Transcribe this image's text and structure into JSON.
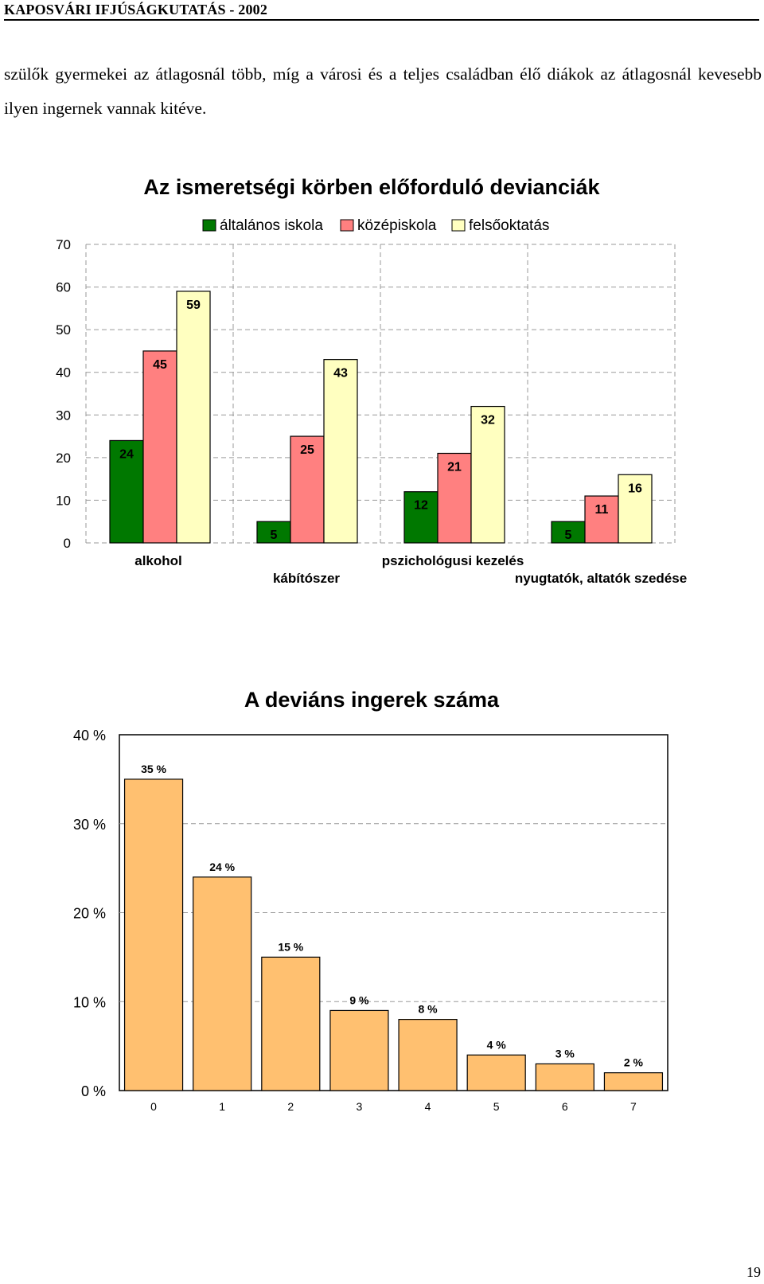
{
  "header": {
    "running_title": "KAPOSVÁRI IFJÚSÁGKUTATÁS - 2002"
  },
  "body": {
    "paragraph": "szülők gyermekei az átlagosnál több, míg a városi és a teljes családban élő diákok az átlagosnál kevesebb ilyen ingernek vannak kitéve."
  },
  "chart_data": [
    {
      "type": "bar",
      "title": "Az ismeretségi körben előforduló devianciák",
      "categories": [
        "alkohol",
        "kábítószer",
        "pszichológusi kezelés",
        "nyugtatók, altatók szedése"
      ],
      "series": [
        {
          "name": "általános iskola",
          "values": [
            24,
            5,
            12,
            5
          ],
          "color": "#007800"
        },
        {
          "name": "középiskola",
          "values": [
            45,
            25,
            21,
            11
          ],
          "color": "#ff8080"
        },
        {
          "name": "felsőoktatás",
          "values": [
            59,
            43,
            32,
            16
          ],
          "color": "#ffffc0"
        }
      ],
      "ylim": [
        0,
        70
      ],
      "yticks": [
        "0",
        "10",
        "20",
        "30",
        "40",
        "50",
        "60",
        "70"
      ],
      "grid": "dashed",
      "legend": "top"
    },
    {
      "type": "bar",
      "title": "A deviáns ingerek száma",
      "categories": [
        "0",
        "1",
        "2",
        "3",
        "4",
        "5",
        "6",
        "7"
      ],
      "values": [
        35,
        24,
        15,
        9,
        8,
        4,
        3,
        2
      ],
      "value_labels": [
        "35 %",
        "24 %",
        "15 %",
        "9 %",
        "8 %",
        "4 %",
        "3 %",
        "2 %"
      ],
      "ylim": [
        0,
        40
      ],
      "yticks": [
        "0 %",
        "10 %",
        "20 %",
        "30 %",
        "40 %"
      ],
      "color": "#ffc070",
      "grid": "dashed"
    }
  ],
  "footer": {
    "page_number": "19"
  }
}
